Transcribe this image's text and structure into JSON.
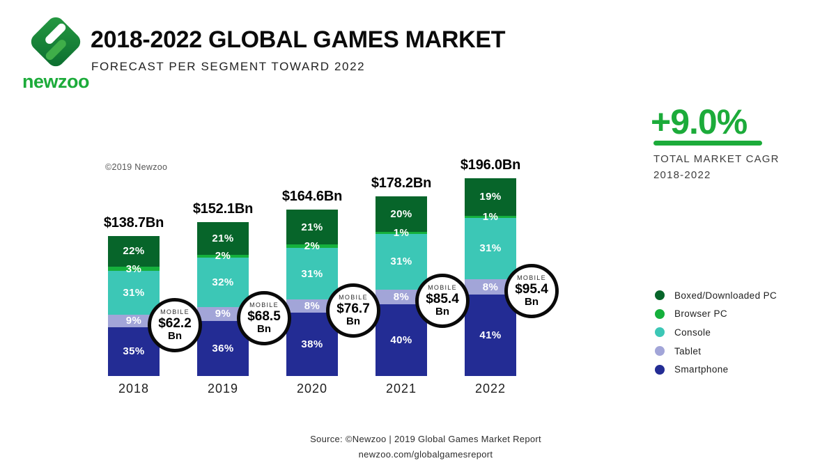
{
  "header": {
    "logo_text": "newzoo",
    "title": "2018-2022 GLOBAL GAMES MARKET",
    "subtitle": "FORECAST PER SEGMENT TOWARD 2022"
  },
  "cagr": {
    "value": "+9.0%",
    "label_line1": "TOTAL MARKET CAGR",
    "label_line2": "2018-2022"
  },
  "copyright": "©2019 Newzoo",
  "source": {
    "line1": "Source: ©Newzoo | 2019 Global Games Market Report",
    "line2": "newzoo.com/globalgamesreport"
  },
  "colors": {
    "boxed_pc": "#07652a",
    "browser_pc": "#15b03c",
    "console": "#3cc7b6",
    "tablet": "#a2a5d8",
    "smartphone": "#232c94",
    "accent_green": "#1cab3a"
  },
  "legend": {
    "items": [
      {
        "label": "Boxed/Downloaded PC",
        "color_key": "boxed_pc"
      },
      {
        "label": "Browser PC",
        "color_key": "browser_pc"
      },
      {
        "label": "Console",
        "color_key": "console"
      },
      {
        "label": "Tablet",
        "color_key": "tablet"
      },
      {
        "label": "Smartphone",
        "color_key": "smartphone"
      }
    ]
  },
  "chart_data": {
    "type": "bar",
    "stacked": true,
    "title": "2018-2022 GLOBAL GAMES MARKET",
    "subtitle": "FORECAST PER SEGMENT TOWARD 2022",
    "legend_position": "right",
    "categories": [
      "2018",
      "2019",
      "2020",
      "2021",
      "2022"
    ],
    "totals_bn": [
      138.7,
      152.1,
      164.6,
      178.2,
      196.0
    ],
    "total_labels": [
      "$138.7Bn",
      "$152.1Bn",
      "$164.6Bn",
      "$178.2Bn",
      "$196.0Bn"
    ],
    "series": [
      {
        "name": "Smartphone",
        "color_key": "smartphone",
        "values_pct": [
          35,
          36,
          38,
          40,
          41
        ],
        "labels_pct": [
          "35%",
          "36%",
          "38%",
          "40%",
          "41%"
        ]
      },
      {
        "name": "Tablet",
        "color_key": "tablet",
        "values_pct": [
          9,
          9,
          8,
          8,
          8
        ],
        "labels_pct": [
          "9%",
          "9%",
          "8%",
          "8%",
          "8%"
        ]
      },
      {
        "name": "Console",
        "color_key": "console",
        "values_pct": [
          31,
          32,
          31,
          31,
          31
        ],
        "labels_pct": [
          "31%",
          "32%",
          "31%",
          "31%",
          "31%"
        ]
      },
      {
        "name": "Browser PC",
        "color_key": "browser_pc",
        "values_pct": [
          3,
          2,
          2,
          1,
          1
        ],
        "labels_pct": [
          "3%",
          "2%",
          "2%",
          "1%",
          "1%"
        ]
      },
      {
        "name": "Boxed/Downloaded PC",
        "color_key": "boxed_pc",
        "values_pct": [
          22,
          21,
          21,
          20,
          19
        ],
        "labels_pct": [
          "22%",
          "21%",
          "21%",
          "20%",
          "19%"
        ]
      }
    ],
    "mobile_callouts": [
      {
        "label": "MOBILE",
        "value": "$62.2",
        "unit": "Bn"
      },
      {
        "label": "MOBILE",
        "value": "$68.5",
        "unit": "Bn"
      },
      {
        "label": "MOBILE",
        "value": "$76.7",
        "unit": "Bn"
      },
      {
        "label": "MOBILE",
        "value": "$85.4",
        "unit": "Bn"
      },
      {
        "label": "MOBILE",
        "value": "$95.4",
        "unit": "Bn"
      }
    ]
  }
}
